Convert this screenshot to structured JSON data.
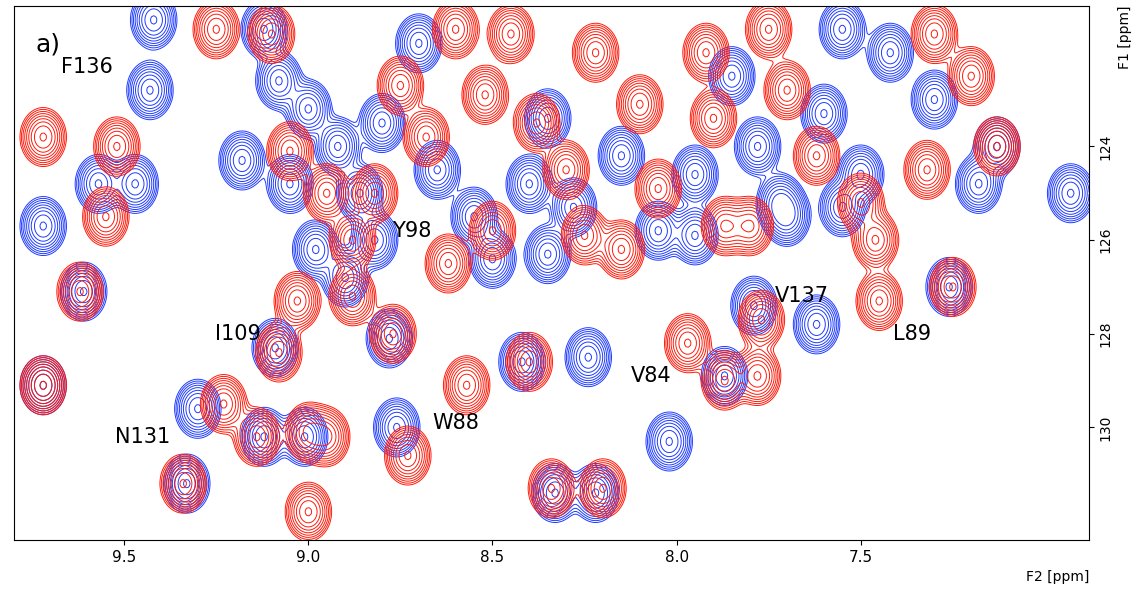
{
  "chart_data": {
    "type": "contour",
    "panel_label": "a)",
    "xlabel": "F2 [ppm]",
    "ylabel": "F1 [ppm]",
    "xlim": [
      9.8,
      6.88
    ],
    "ylim": [
      132.4,
      121.0
    ],
    "xticks": [
      9.5,
      9.0,
      8.5,
      8.0,
      7.5
    ],
    "yticks": [
      124,
      126,
      128,
      130
    ],
    "series": [
      {
        "color": "#1f3cff",
        "peaks": [
          [
            9.42,
            121.3
          ],
          [
            9.43,
            122.8
          ],
          [
            9.57,
            124.8
          ],
          [
            9.47,
            124.8
          ],
          [
            9.72,
            125.7
          ],
          [
            9.61,
            127.1
          ],
          [
            9.72,
            129.1
          ],
          [
            9.3,
            129.6
          ],
          [
            9.33,
            131.2
          ],
          [
            9.12,
            130.2
          ],
          [
            9.01,
            130.2
          ],
          [
            9.09,
            128.3
          ],
          [
            8.78,
            128.1
          ],
          [
            8.42,
            128.6
          ],
          [
            8.33,
            131.4
          ],
          [
            8.22,
            131.4
          ],
          [
            8.76,
            130.0
          ],
          [
            7.79,
            127.4
          ],
          [
            7.62,
            127.8
          ],
          [
            7.87,
            128.9
          ],
          [
            7.26,
            127.0
          ],
          [
            7.13,
            124.0
          ],
          [
            7.18,
            124.8
          ],
          [
            6.93,
            125.0
          ],
          [
            9.12,
            121.5
          ],
          [
            9.08,
            122.6
          ],
          [
            9.0,
            123.2
          ],
          [
            8.92,
            124.0
          ],
          [
            8.86,
            125.0
          ],
          [
            8.98,
            126.2
          ],
          [
            8.82,
            126.0
          ],
          [
            8.65,
            124.5
          ],
          [
            8.55,
            125.5
          ],
          [
            8.5,
            126.4
          ],
          [
            8.4,
            124.8
          ],
          [
            8.35,
            123.4
          ],
          [
            8.28,
            125.3
          ],
          [
            8.15,
            124.2
          ],
          [
            8.05,
            125.8
          ],
          [
            7.95,
            124.6
          ],
          [
            7.85,
            122.5
          ],
          [
            7.78,
            124.0
          ],
          [
            7.7,
            125.5
          ],
          [
            7.6,
            123.3
          ],
          [
            7.5,
            124.6
          ],
          [
            7.42,
            122.0
          ],
          [
            7.3,
            123.0
          ],
          [
            7.55,
            121.5
          ],
          [
            8.7,
            121.8
          ],
          [
            8.8,
            123.5
          ],
          [
            9.05,
            124.8
          ],
          [
            9.18,
            124.3
          ],
          [
            8.9,
            126.8
          ],
          [
            8.35,
            126.3
          ],
          [
            7.95,
            125.9
          ],
          [
            7.72,
            125.2
          ],
          [
            7.55,
            125.3
          ],
          [
            8.02,
            130.3
          ],
          [
            8.24,
            128.5
          ]
        ]
      },
      {
        "color": "#ff1a0a",
        "peaks": [
          [
            9.72,
            123.8
          ],
          [
            9.52,
            124.0
          ],
          [
            9.55,
            125.5
          ],
          [
            9.25,
            121.5
          ],
          [
            9.72,
            129.1
          ],
          [
            9.23,
            129.5
          ],
          [
            9.08,
            128.4
          ],
          [
            9.0,
            131.8
          ],
          [
            8.95,
            130.2
          ],
          [
            8.77,
            128.0
          ],
          [
            8.73,
            130.6
          ],
          [
            8.57,
            129.1
          ],
          [
            8.34,
            131.3
          ],
          [
            8.2,
            131.3
          ],
          [
            8.4,
            128.6
          ],
          [
            7.97,
            128.2
          ],
          [
            7.87,
            129.0
          ],
          [
            7.78,
            128.9
          ],
          [
            7.77,
            127.7
          ],
          [
            7.45,
            127.3
          ],
          [
            7.25,
            127.0
          ],
          [
            7.13,
            124.0
          ],
          [
            7.32,
            124.5
          ],
          [
            9.14,
            130.2
          ],
          [
            9.34,
            131.2
          ],
          [
            9.0,
            130.1
          ],
          [
            9.62,
            127.1
          ],
          [
            9.1,
            121.6
          ],
          [
            9.05,
            124.1
          ],
          [
            9.03,
            127.3
          ],
          [
            8.95,
            125.0
          ],
          [
            8.88,
            126.0
          ],
          [
            8.75,
            122.7
          ],
          [
            8.68,
            123.8
          ],
          [
            8.6,
            121.5
          ],
          [
            8.52,
            122.9
          ],
          [
            8.45,
            121.6
          ],
          [
            8.5,
            125.8
          ],
          [
            8.38,
            123.5
          ],
          [
            8.3,
            124.5
          ],
          [
            8.25,
            125.9
          ],
          [
            8.22,
            122.0
          ],
          [
            8.1,
            123.1
          ],
          [
            8.05,
            124.9
          ],
          [
            7.92,
            122.0
          ],
          [
            7.9,
            123.4
          ],
          [
            7.87,
            125.7
          ],
          [
            7.75,
            121.5
          ],
          [
            7.7,
            122.8
          ],
          [
            7.62,
            124.2
          ],
          [
            7.5,
            125.2
          ],
          [
            7.46,
            126.0
          ],
          [
            7.3,
            121.6
          ],
          [
            7.2,
            122.5
          ],
          [
            8.82,
            125.0
          ],
          [
            8.15,
            126.2
          ],
          [
            7.8,
            125.7
          ],
          [
            8.62,
            126.5
          ],
          [
            8.88,
            127.2
          ]
        ]
      }
    ],
    "annotations": [
      {
        "text": "F136",
        "x": 9.6,
        "y": 122.3
      },
      {
        "text": "Y98",
        "x": 8.72,
        "y": 125.8
      },
      {
        "text": "I109",
        "x": 9.19,
        "y": 128.0
      },
      {
        "text": "N131",
        "x": 9.45,
        "y": 130.2
      },
      {
        "text": "W88",
        "x": 8.6,
        "y": 129.9
      },
      {
        "text": "V84",
        "x": 8.07,
        "y": 128.9
      },
      {
        "text": "V137",
        "x": 7.66,
        "y": 127.2
      },
      {
        "text": "L89",
        "x": 7.36,
        "y": 128.0
      }
    ]
  }
}
